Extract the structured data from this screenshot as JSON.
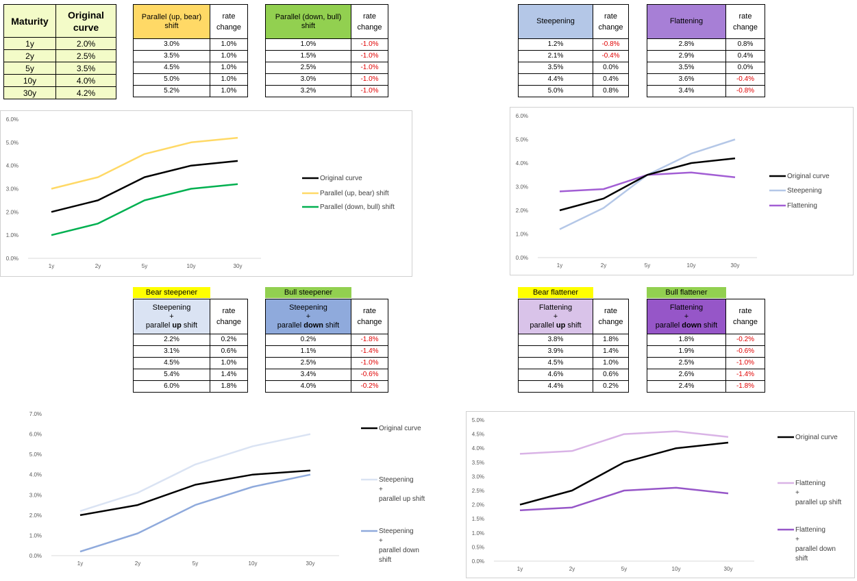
{
  "original_table": {
    "header_maturity": "Maturity",
    "header_curve": [
      "Original",
      "curve"
    ],
    "rows": [
      [
        "1y",
        "2.0%"
      ],
      [
        "2y",
        "2.5%"
      ],
      [
        "5y",
        "3.5%"
      ],
      [
        "10y",
        "4.0%"
      ],
      [
        "30y",
        "4.2%"
      ]
    ]
  },
  "tables": [
    {
      "id": "bear-parallel",
      "header": [
        "Parallel (up, bear)",
        "shift"
      ],
      "header_color": "#ffd966",
      "rate_header": [
        "rate",
        "change"
      ],
      "values": [
        "3.0%",
        "3.5%",
        "4.5%",
        "5.0%",
        "5.2%"
      ],
      "changes": [
        "1.0%",
        "1.0%",
        "1.0%",
        "1.0%",
        "1.0%"
      ]
    },
    {
      "id": "bull-parallel",
      "header": [
        "Parallel (down, bull)",
        "shift"
      ],
      "header_color": "#92d050",
      "rate_header": [
        "rate",
        "change"
      ],
      "values": [
        "1.0%",
        "1.5%",
        "2.5%",
        "3.0%",
        "3.2%"
      ],
      "changes": [
        "-1.0%",
        "-1.0%",
        "-1.0%",
        "-1.0%",
        "-1.0%"
      ]
    },
    {
      "id": "steepening",
      "header": [
        "Steepening"
      ],
      "header_color": "#b4c7e7",
      "rate_header": [
        "rate",
        "change"
      ],
      "values": [
        "1.2%",
        "2.1%",
        "3.5%",
        "4.4%",
        "5.0%"
      ],
      "changes": [
        "-0.8%",
        "-0.4%",
        "0.0%",
        "0.4%",
        "0.8%"
      ]
    },
    {
      "id": "flattening",
      "header": [
        "Flattening"
      ],
      "header_color": "#a77fd6",
      "rate_header": [
        "rate",
        "change"
      ],
      "values": [
        "2.8%",
        "2.9%",
        "3.5%",
        "3.6%",
        "3.4%"
      ],
      "changes": [
        "0.8%",
        "0.4%",
        "0.0%",
        "-0.4%",
        "-0.8%"
      ]
    },
    {
      "id": "bear-steepener",
      "tag": "Bear steepener",
      "tag_color": "#ffff00",
      "header": [
        "Steepening",
        "+",
        "parallel up shift"
      ],
      "header_color": "#dae3f3",
      "rate_header": [
        "rate",
        "change"
      ],
      "values": [
        "2.2%",
        "3.1%",
        "4.5%",
        "5.4%",
        "6.0%"
      ],
      "changes": [
        "0.2%",
        "0.6%",
        "1.0%",
        "1.4%",
        "1.8%"
      ]
    },
    {
      "id": "bull-steepener",
      "tag": "Bull steepener",
      "tag_color": "#92d050",
      "header": [
        "Steepening",
        "+",
        "parallel down shift"
      ],
      "header_color": "#8faadc",
      "rate_header": [
        "rate",
        "change"
      ],
      "values": [
        "0.2%",
        "1.1%",
        "2.5%",
        "3.4%",
        "4.0%"
      ],
      "changes": [
        "-1.8%",
        "-1.4%",
        "-1.0%",
        "-0.6%",
        "-0.2%"
      ]
    },
    {
      "id": "bear-flattener",
      "tag": "Bear flattener",
      "tag_color": "#ffff00",
      "header": [
        "Flattening",
        "+",
        "parallel up shift"
      ],
      "header_color": "#d9c3e9",
      "rate_header": [
        "rate",
        "change"
      ],
      "values": [
        "3.8%",
        "3.9%",
        "4.5%",
        "4.6%",
        "4.4%"
      ],
      "changes": [
        "1.8%",
        "1.4%",
        "1.0%",
        "0.6%",
        "0.2%"
      ]
    },
    {
      "id": "bull-flattener",
      "tag": "Bull flattener",
      "tag_color": "#92d050",
      "header": [
        "Flattening",
        "+",
        "parallel down shift"
      ],
      "header_color": "#9656c8",
      "rate_header": [
        "rate",
        "change"
      ],
      "values": [
        "1.8%",
        "1.9%",
        "2.5%",
        "2.6%",
        "2.4%"
      ],
      "changes": [
        "-0.2%",
        "-0.6%",
        "-1.0%",
        "-1.4%",
        "-1.8%"
      ]
    }
  ],
  "chart_data": [
    {
      "type": "line",
      "categories": [
        "1y",
        "2y",
        "5y",
        "10y",
        "30y"
      ],
      "ylim": [
        0,
        6
      ],
      "yticks": [
        "0.0%",
        "1.0%",
        "2.0%",
        "3.0%",
        "4.0%",
        "5.0%",
        "6.0%"
      ],
      "legend_position": "right",
      "grid": false,
      "series": [
        {
          "name": "Original curve",
          "color": "#000000",
          "values": [
            2.0,
            2.5,
            3.5,
            4.0,
            4.2
          ]
        },
        {
          "name": "Parallel (up, bear) shift",
          "color": "#ffd966",
          "values": [
            3.0,
            3.5,
            4.5,
            5.0,
            5.2
          ]
        },
        {
          "name": "Parallel (down, bull) shift",
          "color": "#00b050",
          "values": [
            1.0,
            1.5,
            2.5,
            3.0,
            3.2
          ]
        }
      ]
    },
    {
      "type": "line",
      "categories": [
        "1y",
        "2y",
        "5y",
        "10y",
        "30y"
      ],
      "ylim": [
        0,
        6
      ],
      "yticks": [
        "0.0%",
        "1.0%",
        "2.0%",
        "3.0%",
        "4.0%",
        "5.0%",
        "6.0%"
      ],
      "legend_position": "right",
      "grid": false,
      "series": [
        {
          "name": "Original curve",
          "color": "#000000",
          "values": [
            2.0,
            2.5,
            3.5,
            4.0,
            4.2
          ]
        },
        {
          "name": "Steepening",
          "color": "#b4c7e7",
          "values": [
            1.2,
            2.1,
            3.5,
            4.4,
            5.0
          ]
        },
        {
          "name": "Flattening",
          "color": "#a25ed4",
          "values": [
            2.8,
            2.9,
            3.5,
            3.6,
            3.4
          ]
        }
      ]
    },
    {
      "type": "line",
      "categories": [
        "1y",
        "2y",
        "5y",
        "10y",
        "30y"
      ],
      "ylim": [
        0,
        7
      ],
      "yticks": [
        "0.0%",
        "1.0%",
        "2.0%",
        "3.0%",
        "4.0%",
        "5.0%",
        "6.0%",
        "7.0%"
      ],
      "legend_position": "right",
      "grid": false,
      "series": [
        {
          "name": "Original curve",
          "color": "#000000",
          "values": [
            2.0,
            2.5,
            3.5,
            4.0,
            4.2
          ]
        },
        {
          "name": "Steepening + parallel up shift",
          "legend_lines": [
            "Steepening",
            "+",
            "parallel up shift"
          ],
          "color": "#dae3f3",
          "values": [
            2.2,
            3.1,
            4.5,
            5.4,
            6.0
          ]
        },
        {
          "name": "Steepening + parallel down shift",
          "legend_lines": [
            "Steepening",
            "+",
            "parallel down",
            "shift"
          ],
          "color": "#8faadc",
          "values": [
            0.2,
            1.1,
            2.5,
            3.4,
            4.0
          ]
        }
      ]
    },
    {
      "type": "line",
      "categories": [
        "1y",
        "2y",
        "5y",
        "10y",
        "30y"
      ],
      "ylim": [
        0,
        5
      ],
      "yticks": [
        "0.0%",
        "0.5%",
        "1.0%",
        "1.5%",
        "2.0%",
        "2.5%",
        "3.0%",
        "3.5%",
        "4.0%",
        "4.5%",
        "5.0%"
      ],
      "legend_position": "right",
      "grid": false,
      "series": [
        {
          "name": "Original curve",
          "color": "#000000",
          "values": [
            2.0,
            2.5,
            3.5,
            4.0,
            4.2
          ]
        },
        {
          "name": "Flattening + parallel up shift",
          "legend_lines": [
            "Flattening",
            "+",
            "parallel up shift"
          ],
          "color": "#d9b3e6",
          "values": [
            3.8,
            3.9,
            4.5,
            4.6,
            4.4
          ]
        },
        {
          "name": "Flattening + parallel down shift",
          "legend_lines": [
            "Flattening",
            "+",
            "parallel down",
            "shift"
          ],
          "color": "#9656c8",
          "values": [
            1.8,
            1.9,
            2.5,
            2.6,
            2.4
          ]
        }
      ]
    }
  ]
}
